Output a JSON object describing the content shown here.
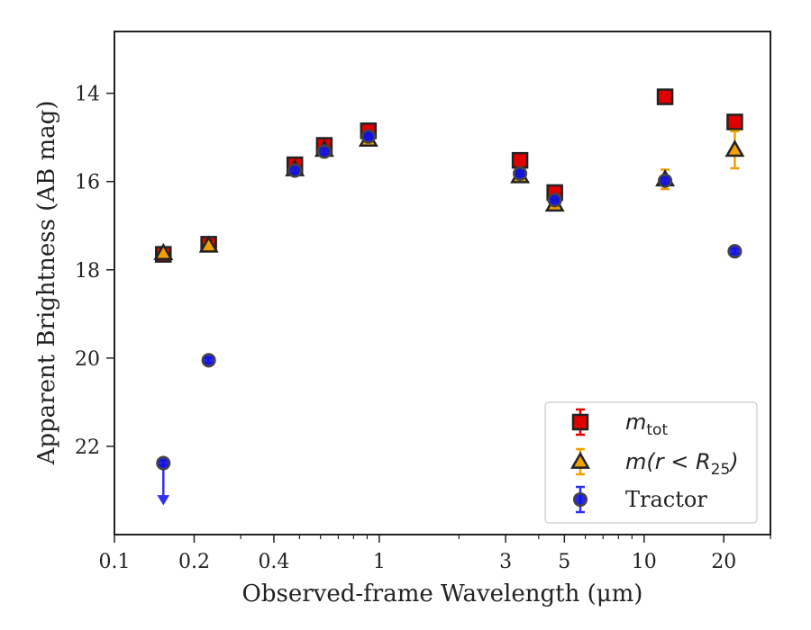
{
  "chart_data": {
    "type": "scatter",
    "xlabel": "Observed-frame Wavelength (μm)",
    "ylabel": "Apparent Brightness (AB mag)",
    "xscale": "log",
    "xlim": [
      0.1,
      30
    ],
    "ylim": [
      24.0,
      12.6
    ],
    "y_inverted": true,
    "x_ticks": [
      {
        "value": 0.1,
        "label": "0.1"
      },
      {
        "value": 0.2,
        "label": "0.2"
      },
      {
        "value": 0.4,
        "label": "0.4"
      },
      {
        "value": 1,
        "label": "1"
      },
      {
        "value": 3,
        "label": "3"
      },
      {
        "value": 5,
        "label": "5"
      },
      {
        "value": 10,
        "label": "10"
      },
      {
        "value": 20,
        "label": "20"
      }
    ],
    "y_ticks": [
      14,
      16,
      18,
      20,
      22
    ],
    "grid": false,
    "legend_position": "bottom-right",
    "series": [
      {
        "label_main": "m",
        "label_sub": "tot",
        "marker": "square",
        "color": "#e00000",
        "edge": "#222222",
        "err_color": "#e00000",
        "points": [
          {
            "x": 0.153,
            "y": 17.65,
            "err": 0.06
          },
          {
            "x": 0.227,
            "y": 17.42,
            "err": 0.06
          },
          {
            "x": 0.48,
            "y": 15.62,
            "err": 0.06
          },
          {
            "x": 0.62,
            "y": 15.18,
            "err": 0.06
          },
          {
            "x": 0.91,
            "y": 14.85,
            "err": 0.06
          },
          {
            "x": 3.4,
            "y": 15.52,
            "err": 0.06
          },
          {
            "x": 4.6,
            "y": 16.25,
            "err": 0.06
          },
          {
            "x": 12.0,
            "y": 14.08,
            "err": 0.06
          },
          {
            "x": 22.0,
            "y": 14.65,
            "err": 0.06
          }
        ]
      },
      {
        "label_main": "m(r < R",
        "label_sub": "25",
        "label_tail": ")",
        "marker": "triangle",
        "color": "#f0a000",
        "edge": "#222222",
        "err_color": "#f0a000",
        "points": [
          {
            "x": 0.153,
            "y": 17.62,
            "err": 0.06
          },
          {
            "x": 0.227,
            "y": 17.45,
            "err": 0.06
          },
          {
            "x": 0.48,
            "y": 15.72,
            "err": 0.06
          },
          {
            "x": 0.62,
            "y": 15.28,
            "err": 0.06
          },
          {
            "x": 0.91,
            "y": 15.05,
            "err": 0.06
          },
          {
            "x": 3.4,
            "y": 15.88,
            "err": 0.06
          },
          {
            "x": 4.6,
            "y": 16.52,
            "err": 0.06
          },
          {
            "x": 12.0,
            "y": 15.95,
            "err": 0.22
          },
          {
            "x": 22.0,
            "y": 15.28,
            "err": 0.42
          }
        ]
      },
      {
        "label_main": "Tractor",
        "marker": "circle",
        "color": "#1010e0",
        "edge": "#444444",
        "err_color": "#3030f0",
        "points": [
          {
            "x": 0.153,
            "y": 22.38,
            "err": 0.06,
            "upper_limit": true
          },
          {
            "x": 0.227,
            "y": 20.05,
            "err": 0.06
          },
          {
            "x": 0.48,
            "y": 15.75,
            "err": 0.06
          },
          {
            "x": 0.62,
            "y": 15.32,
            "err": 0.06
          },
          {
            "x": 0.91,
            "y": 14.98,
            "err": 0.06
          },
          {
            "x": 3.4,
            "y": 15.82,
            "err": 0.06
          },
          {
            "x": 4.6,
            "y": 16.42,
            "err": 0.06
          },
          {
            "x": 12.0,
            "y": 15.98,
            "err": 0.06
          },
          {
            "x": 22.0,
            "y": 17.58,
            "err": 0.06
          }
        ]
      }
    ]
  }
}
